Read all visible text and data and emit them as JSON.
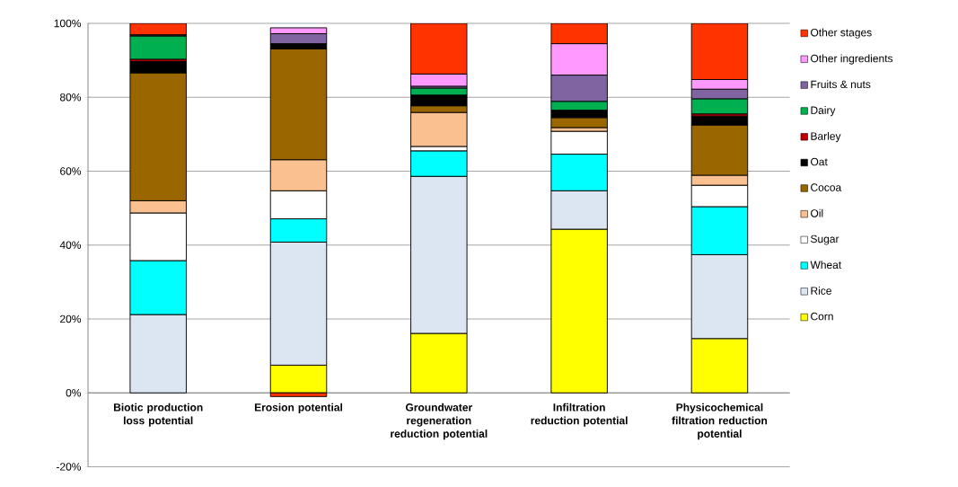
{
  "chart_data": {
    "type": "bar",
    "stacked": true,
    "categories": [
      "Biotic production loss potential",
      "Erosion potential",
      "Groundwater regeneration reduction potential",
      "Infiltration reduction potential",
      "Physicochemical filtration reduction potential"
    ],
    "series": [
      {
        "name": "Corn",
        "color": "#ffff00",
        "values": [
          null,
          7.5,
          16.1,
          44.3,
          14.7
        ]
      },
      {
        "name": "Rice",
        "color": "#dce6f2",
        "values": [
          21.2,
          33.3,
          42.5,
          10.4,
          22.7
        ]
      },
      {
        "name": "Wheat",
        "color": "#00ffff",
        "values": [
          14.6,
          6.3,
          6.9,
          9.9,
          13.0
        ]
      },
      {
        "name": "Sugar",
        "color": "#ffffff",
        "values": [
          12.9,
          7.6,
          1.2,
          6.2,
          5.8
        ]
      },
      {
        "name": "Oil",
        "color": "#fac090",
        "values": [
          3.3,
          8.4,
          9.2,
          1.0,
          2.7
        ]
      },
      {
        "name": "Cocoa",
        "color": "#996600",
        "values": [
          34.6,
          30.0,
          1.8,
          2.7,
          13.6
        ]
      },
      {
        "name": "Oat",
        "color": "#000000",
        "values": [
          3.1,
          1.4,
          2.9,
          2.0,
          2.4
        ]
      },
      {
        "name": "Barley",
        "color": "#c00000",
        "values": [
          0.6,
          null,
          null,
          null,
          0.6
        ]
      },
      {
        "name": "Dairy",
        "color": "#00b050",
        "values": [
          6.3,
          null,
          1.9,
          2.4,
          4.1
        ]
      },
      {
        "name": "Fruits & nuts",
        "color": "#8064a2",
        "values": [
          0.3,
          2.7,
          0.5,
          7.1,
          2.6
        ]
      },
      {
        "name": "Other ingredients",
        "color": "#ff99ff",
        "values": [
          0,
          1.6,
          3.3,
          8.5,
          2.6
        ]
      },
      {
        "name": "Other stages",
        "color": "#ff3300",
        "values": [
          3.1,
          -1.0,
          13.7,
          5.5,
          15.2
        ]
      }
    ],
    "ylim": [
      -20,
      100
    ],
    "yticks": [
      {
        "value": -20,
        "label": "-20%"
      },
      {
        "value": 0,
        "label": "0%"
      },
      {
        "value": 20,
        "label": "20%"
      },
      {
        "value": 40,
        "label": "40%"
      },
      {
        "value": 60,
        "label": "60%"
      },
      {
        "value": 80,
        "label": "80%"
      },
      {
        "value": 100,
        "label": "100%"
      }
    ],
    "grid": "y",
    "legend": "right"
  }
}
